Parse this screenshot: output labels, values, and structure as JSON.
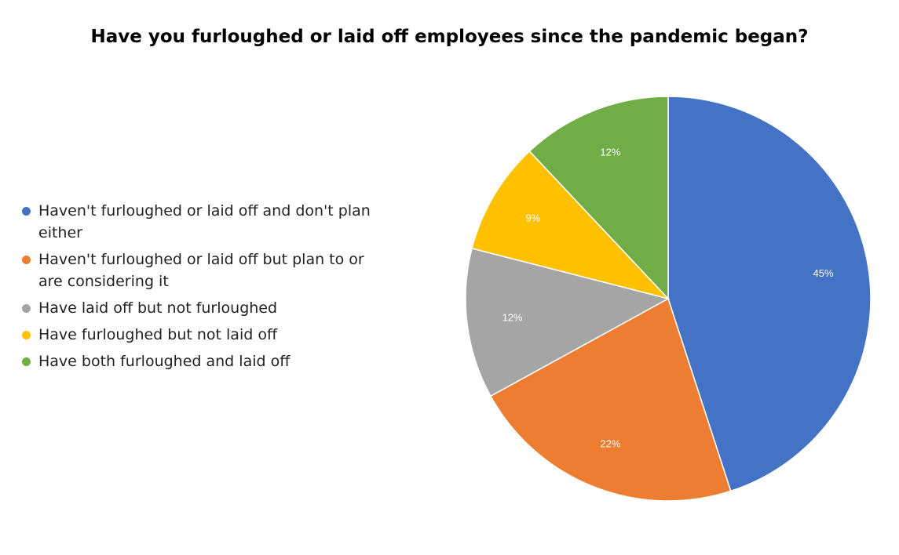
{
  "chart_data": {
    "type": "pie",
    "title": "Have you furloughed or laid off employees since the pandemic began?",
    "slices": [
      {
        "label": "Haven't furloughed or laid off and don't plan either",
        "value": 45,
        "display": "45%",
        "color": "#4472C4"
      },
      {
        "label": "Haven't furloughed or laid off but plan to or are considering it",
        "value": 22,
        "display": "22%",
        "color": "#ED7D31"
      },
      {
        "label": "Have laid off but not furloughed",
        "value": 12,
        "display": "12%",
        "color": "#A5A5A5"
      },
      {
        "label": "Have furloughed but not laid off",
        "value": 9,
        "display": "9%",
        "color": "#FFC000"
      },
      {
        "label": "Have both furloughed and laid off",
        "value": 12,
        "display": "12%",
        "color": "#70AD47"
      }
    ],
    "start_angle": "12 o'clock",
    "direction": "clockwise",
    "legend_position": "left"
  }
}
